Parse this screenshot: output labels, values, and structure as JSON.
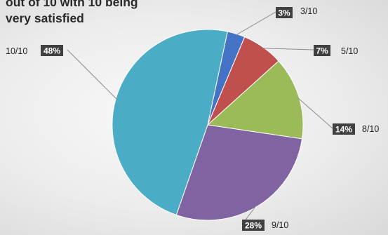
{
  "chart_data": {
    "type": "pie",
    "title_lines": [
      "out of 10 with 10 being",
      "very satisfied"
    ],
    "slices": [
      {
        "category": "3/10",
        "value": 3,
        "label": "3%",
        "color": "#4472c4"
      },
      {
        "category": "5/10",
        "value": 7,
        "label": "7%",
        "color": "#c0504d"
      },
      {
        "category": "8/10",
        "value": 14,
        "label": "14%",
        "color": "#9bbb59"
      },
      {
        "category": "9/10",
        "value": 28,
        "label": "28%",
        "color": "#8064a2"
      },
      {
        "category": "10/10",
        "value": 48,
        "label": "48%",
        "color": "#4bacc6"
      }
    ],
    "legend": "none",
    "label_box_color": "#404040",
    "leader_line_color": "#8c8c8c"
  }
}
